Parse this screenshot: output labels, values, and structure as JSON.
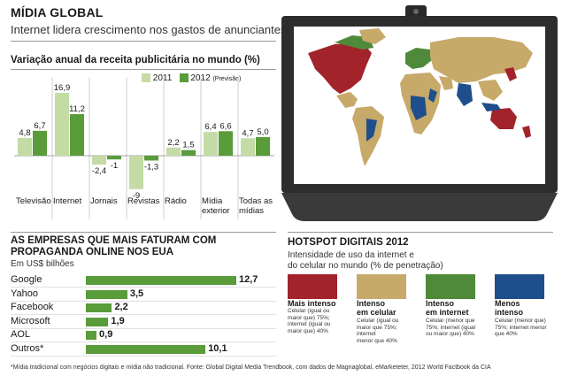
{
  "header": {
    "title": "MÍDIA GLOBAL",
    "subtitle": "Internet lidera crescimento nos gastos de anunciantes"
  },
  "bar_section": {
    "title": "Variação anual da receita publicitária no mundo (%)"
  },
  "legend": {
    "s2011": "2011",
    "s2012": "2012",
    "s2012_note": "(Previsão)"
  },
  "hbar_section": {
    "title_line1": "AS EMPRESAS QUE MAIS FATURAM COM",
    "title_line2": "PROPAGANDA ONLINE NOS EUA",
    "unit": "Em US$ bilhões"
  },
  "hotspot": {
    "title": "HOTSPOT DIGITAIS 2012",
    "desc_line1": "Intensidade de uso da internet e",
    "desc_line2": "do celular no mundo (% de penetração)",
    "items": [
      {
        "label1": "Mais intenso",
        "label2": "",
        "color": "#a3232b",
        "desc": [
          "Celular (igual ou",
          "maior que) 75%;",
          "internet (igual ou",
          "maior que) 40%"
        ]
      },
      {
        "label1": "Intenso",
        "label2": "em celular",
        "color": "#c7a96a",
        "desc": [
          "Celular (igual ou",
          "maior que 75%;",
          "internet",
          "menor que 40%"
        ]
      },
      {
        "label1": "Intenso",
        "label2": "em internet",
        "color": "#4f8a3a",
        "desc": [
          "Celular (menor que",
          "75%; internet (igual",
          "ou maior que) 40%"
        ]
      },
      {
        "label1": "Menos",
        "label2": "intenso",
        "color": "#1f4e8c",
        "desc": [
          "Celular (menor que)",
          "75%; internet menor",
          "que 40%"
        ]
      }
    ]
  },
  "footnote": "*Mídia tradicional com negócios digitais e mídia não tradicional. Fonte: Global Digital Media Trendbook, com dados de Magnaglobal, eMarketeter, 2012 World Factbook da CIA",
  "colors": {
    "s2011": "#c5dba6",
    "s2012": "#5a9b3a",
    "hbar": "#5a9b3a"
  },
  "chart_data": [
    {
      "type": "bar",
      "title": "Variação anual da receita publicitária no mundo (%)",
      "categories": [
        "Televisão",
        "Internet",
        "Jornais",
        "Revistas",
        "Rádio",
        "Mídia exterior",
        "Todas as mídias"
      ],
      "category_lines": [
        [
          "Televisão"
        ],
        [
          "Internet"
        ],
        [
          "Jornais"
        ],
        [
          "Revistas"
        ],
        [
          "Rádio"
        ],
        [
          "Mídia",
          "exterior"
        ],
        [
          "Todas as",
          "mídias"
        ]
      ],
      "series": [
        {
          "name": "2011",
          "values": [
            4.8,
            16.9,
            -2.4,
            -9,
            2.2,
            6.4,
            4.7
          ]
        },
        {
          "name": "2012 (Previsão)",
          "values": [
            6.7,
            11.2,
            -1,
            -1.3,
            1.5,
            6.6,
            5.0
          ]
        }
      ],
      "value_labels": [
        [
          "4,8",
          "16,9",
          "-2,4",
          "-9",
          "2,2",
          "6,4",
          "4,7"
        ],
        [
          "6,7",
          "11,2",
          "-1",
          "-1,3",
          "1,5",
          "6,6",
          "5,0"
        ]
      ],
      "ylim": [
        -9,
        17
      ]
    },
    {
      "type": "bar",
      "orientation": "horizontal",
      "title": "AS EMPRESAS QUE MAIS FATURAM COM PROPAGANDA ONLINE NOS EUA",
      "unit": "Em US$ bilhões",
      "categories": [
        "Google",
        "Yahoo",
        "Facebook",
        "Microsoft",
        "AOL",
        "Outros*"
      ],
      "values": [
        12.7,
        3.5,
        2.2,
        1.9,
        0.9,
        10.1
      ],
      "value_labels": [
        "12,7",
        "3,5",
        "2,2",
        "1,9",
        "0,9",
        "10,1"
      ]
    }
  ]
}
